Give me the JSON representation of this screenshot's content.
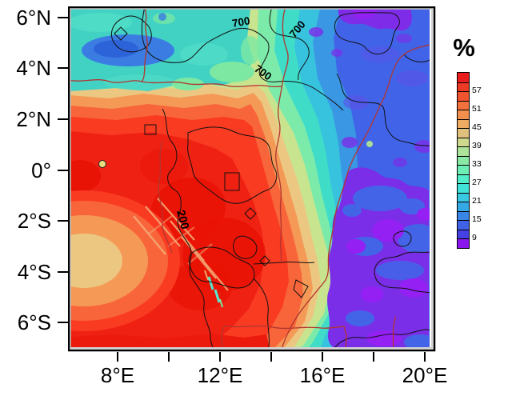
{
  "figure": {
    "colorbar_title": "%",
    "y_axis": {
      "labels": [
        "6°N",
        "4°N",
        "2°N",
        "0°",
        "2°S",
        "4°S",
        "6°S"
      ]
    },
    "x_axis": {
      "labels": [
        "8°E",
        "12°E",
        "16°E",
        "20°E"
      ]
    },
    "contour_labels": {
      "upper": "700",
      "inner": "200"
    }
  },
  "chart_data": {
    "type": "heatmap",
    "title": "",
    "variable": "percentage (%), filled contours over equatorial Africa with black contour lines (700, 200) and red-brown political borders",
    "x_axis": {
      "tick_labels": [
        "8°E",
        "12°E",
        "16°E",
        "20°E"
      ],
      "minor_tick_interval_deg": 2,
      "range": [
        "6°E",
        "20.5°E"
      ]
    },
    "y_axis": {
      "tick_labels": [
        "6°N",
        "4°N",
        "2°N",
        "0°",
        "2°S",
        "4°S",
        "6°S"
      ],
      "range": [
        "7.2°S",
        "6.5°N"
      ]
    },
    "colorbar": {
      "title": "%",
      "tick_labels": [
        "57",
        "51",
        "45",
        "39",
        "33",
        "27",
        "21",
        "15",
        "9"
      ],
      "value_interval": 3,
      "value_range": [
        6,
        63
      ],
      "segment_colors": [
        "#ea1c1c",
        "#ed3a24",
        "#f0542e",
        "#f2713c",
        "#f28f4d",
        "#edac62",
        "#dfc07c",
        "#cfd98d",
        "#abe39a",
        "#8aeaa5",
        "#6ceeb5",
        "#52eec9",
        "#41e2d8",
        "#39c8e2",
        "#35a9e4",
        "#3a86e6",
        "#3f62e6",
        "#4641e4",
        "#8a15ef"
      ]
    },
    "contours": {
      "labels": [
        "700",
        "700",
        "700",
        "200"
      ],
      "line_color": "#111111"
    },
    "border_line_color": "#b23530",
    "regions": [
      {
        "area": "west and southwest (6-13°E, 2°N-7°S)",
        "approx_value_pct": "51-63, red/orange maximum"
      },
      {
        "area": "deep red cores (10-13°E, 1-5°S and left edge near 0°)",
        "approx_value_pct": ">60"
      },
      {
        "area": "coastal bullseye minimum (6-8°E, 3-5°S)",
        "approx_value_pct": "45-48 sand-colored core"
      },
      {
        "area": "northern band (6-15°E, 3-6.5°N)",
        "approx_value_pct": "24-33 teal/cyan"
      },
      {
        "area": "northwest patch (6.5-10°E, 4.5-5.5°N)",
        "approx_value_pct": "15-21 blue"
      },
      {
        "area": "diagonal transition band (13-16°E, tilting east toward south)",
        "approx_value_pct": "18-48 rainbow gradient"
      },
      {
        "area": "east (16-20.5°E)",
        "approx_value_pct": "9-15 blue"
      },
      {
        "area": "eastern purple patches (16-20.5°E, mostly 0-7°S and near 6°N)",
        "approx_value_pct": "6-9 purple"
      }
    ]
  }
}
